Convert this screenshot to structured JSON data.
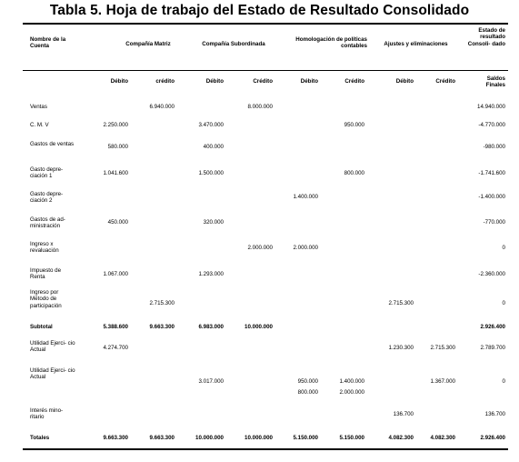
{
  "title": "Tabla 5. Hoja de trabajo del Estado de Resultado Consolidado",
  "header": {
    "cuenta": "Nombre de la Cuenta",
    "matriz": "Compañía Matriz",
    "subordinada": "Compañía Subordinada",
    "homologacion": "Homologación de políticas contables",
    "ajustes": "Ajustes y eliminaciones",
    "estado": "Estado de resultado Consoli- dado"
  },
  "subheader": [
    "Débito",
    "crédito",
    "Débito",
    "Crédito",
    "Débito",
    "Crédito",
    "Débito",
    "Crédito",
    "Saldos Finales"
  ],
  "rows": [
    {
      "label": "Ventas",
      "values": [
        "",
        "6.940.000",
        "",
        "8.000.000",
        "",
        "",
        "",
        "",
        "14.940.000"
      ]
    },
    {
      "label": "C. M. V",
      "values": [
        "2.250.000",
        "",
        "3.470.000",
        "",
        "",
        "950.000",
        "",
        "",
        "-4.770.000"
      ]
    },
    {
      "label": "Gastos de ventas",
      "values": [
        "580.000",
        "",
        "400.000",
        "",
        "",
        "",
        "",
        "",
        "-980.000"
      ]
    },
    {
      "label": "Gasto depre- ciación 1",
      "values": [
        "1.041.600",
        "",
        "1.500.000",
        "",
        "",
        "800.000",
        "",
        "",
        "-1.741.600"
      ]
    },
    {
      "label": "Gasto depre- ciación 2",
      "values": [
        "",
        "",
        "",
        "",
        "1.400.000",
        "",
        "",
        "",
        "-1.400.000"
      ]
    },
    {
      "label": "Gastos de ad- ministración",
      "values": [
        "450.000",
        "",
        "320.000",
        "",
        "",
        "",
        "",
        "",
        "-770.000"
      ]
    },
    {
      "label": "Ingreso x revaluación",
      "values": [
        "",
        "",
        "",
        "2.000.000",
        "2.000.000",
        "",
        "",
        "",
        "0"
      ]
    },
    {
      "label": "Impuesto de Renta",
      "values": [
        "1.067.000",
        "",
        "1.293.000",
        "",
        "",
        "",
        "",
        "",
        "-2.360.000"
      ]
    },
    {
      "label": "Ingreso por Método de participación",
      "values": [
        "",
        "2.715.300",
        "",
        "",
        "",
        "",
        "2.715.300",
        "",
        "0"
      ]
    },
    {
      "label": "Subtotal",
      "bold": true,
      "values": [
        "5.388.600",
        "9.663.300",
        "6.983.000",
        "10.000.000",
        "",
        "",
        "",
        "",
        "2.926.400"
      ]
    },
    {
      "label": "Utilidad Ejerci- cio Actual",
      "values": [
        "4.274.700",
        "",
        "",
        "",
        "",
        "",
        "1.230.300",
        "2.715.300",
        "2.789.700"
      ]
    },
    {
      "label": "Utilidad Ejerci- cio Actual",
      "values": [
        "",
        "",
        "3.017.000",
        "",
        "950.000",
        "1.400.000",
        "",
        "1.367.000",
        "0"
      ]
    },
    {
      "label": "",
      "values": [
        "",
        "",
        "",
        "",
        "800.000",
        "2.000.000",
        "",
        "",
        ""
      ]
    },
    {
      "label": "Interés mino- ritario",
      "values": [
        "",
        "",
        "",
        "",
        "",
        "",
        "136.700",
        "",
        "136.700"
      ]
    },
    {
      "label": "Totales",
      "bold": true,
      "values": [
        "9.663.300",
        "9.663.300",
        "10.000.000",
        "10.000.000",
        "5.150.000",
        "5.150.000",
        "4.082.300",
        "4.082.300",
        "2.926.400"
      ]
    }
  ]
}
